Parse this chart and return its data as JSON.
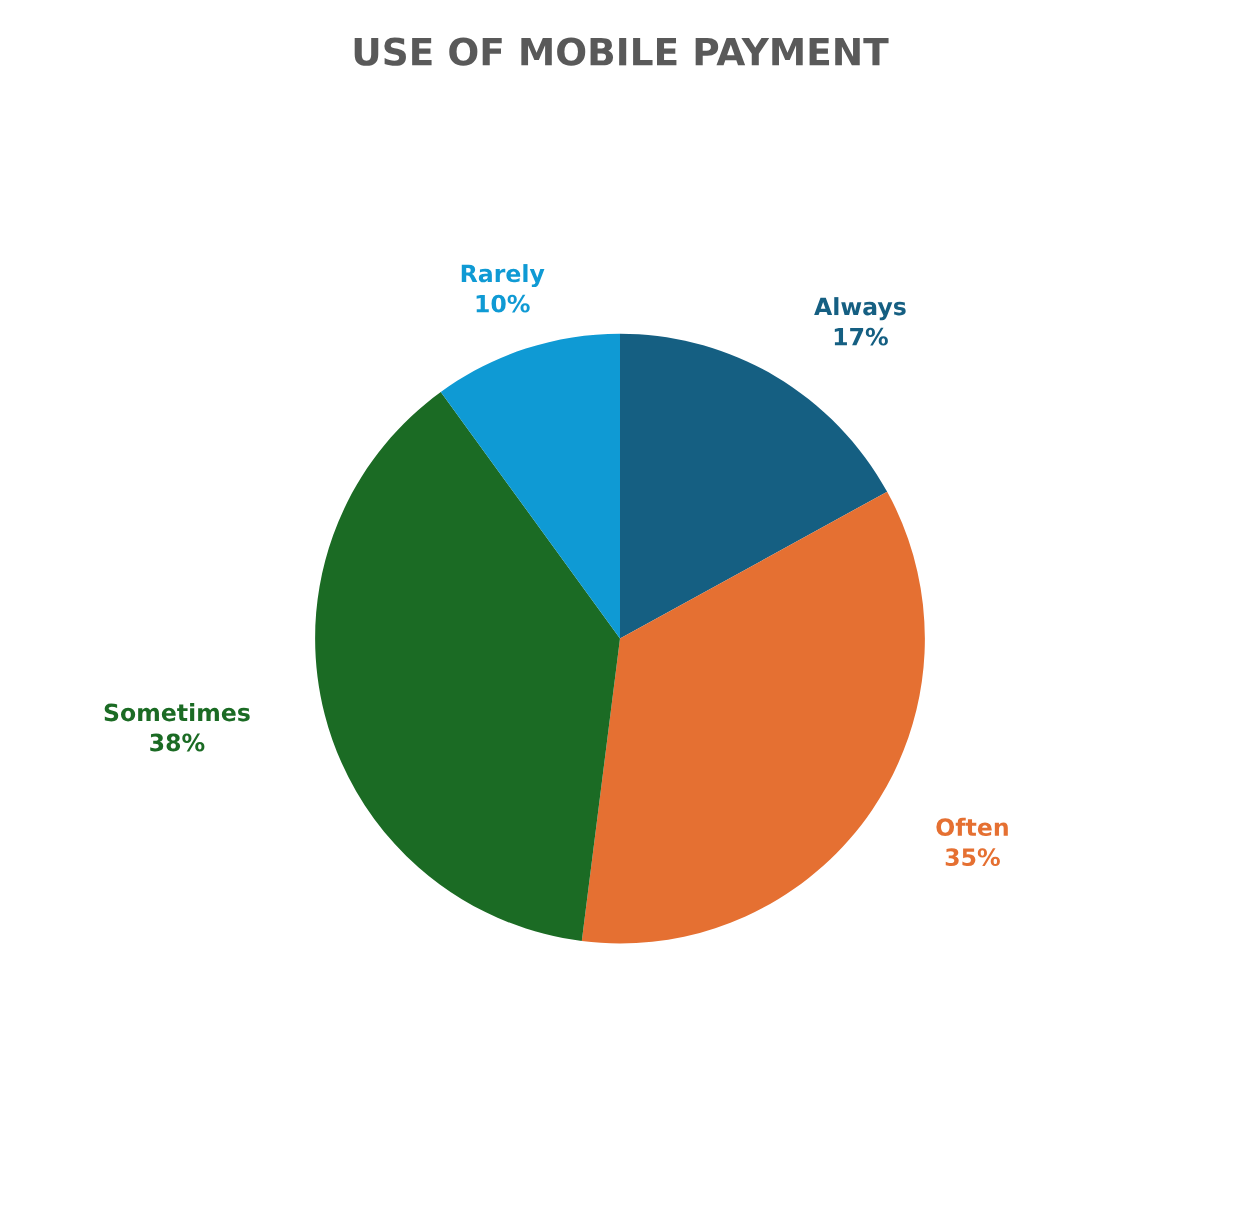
{
  "chart_data": {
    "type": "pie",
    "title": "USE OF MOBILE PAYMENT",
    "categories": [
      "Always",
      "Often",
      "Sometimes",
      "Rarely"
    ],
    "values": [
      17,
      35,
      38,
      10
    ],
    "colors": [
      "#155f82",
      "#e57032",
      "#1b6b24",
      "#0f9ad4"
    ],
    "value_labels": [
      "17%",
      "35%",
      "38%",
      "10%"
    ],
    "legend": false
  }
}
